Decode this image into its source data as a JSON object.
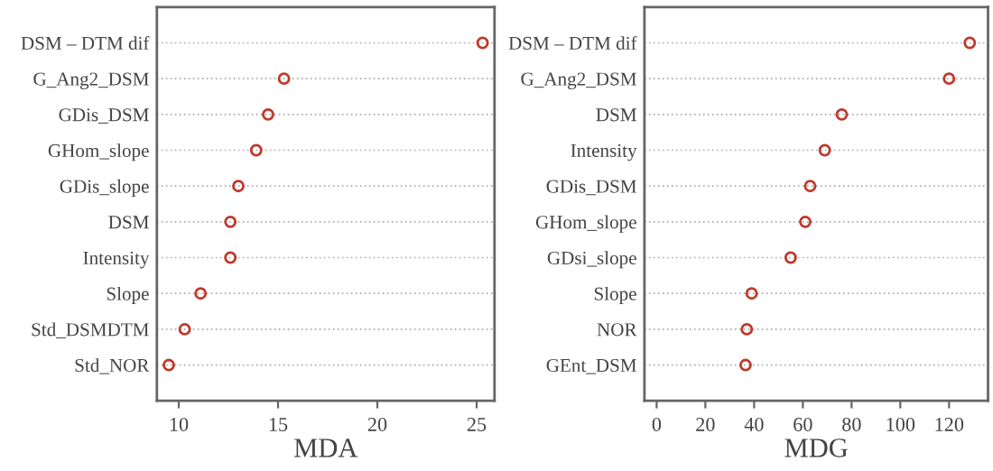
{
  "chart_data": [
    {
      "type": "scatter",
      "orientation": "horizontal",
      "xlabel": "MDA",
      "categories": [
        "DSM – DTM dif",
        "G_Ang2_DSM",
        "GDis_DSM",
        "GHom_slope",
        "GDis_slope",
        "DSM",
        "Intensity",
        "Slope",
        "Std_DSMDTM",
        "Std_NOR"
      ],
      "series": [
        {
          "color": "#c0392b",
          "values": [
            25.3,
            15.3,
            14.5,
            13.9,
            13.0,
            12.6,
            12.6,
            11.1,
            10.3,
            9.5
          ]
        }
      ],
      "xlim": [
        8.9,
        25.9
      ],
      "xticks": [
        10,
        15,
        20,
        25
      ],
      "grid": "y",
      "marker": "circle"
    },
    {
      "type": "scatter",
      "orientation": "horizontal",
      "xlabel": "MDG",
      "categories": [
        "DSM – DTM dif",
        "G_Ang2_DSM",
        "DSM",
        "Intensity",
        "GDis_DSM",
        "GHom_slope",
        "GDsi_slope",
        "Slope",
        "NOR",
        "GEnt_DSM"
      ],
      "series": [
        {
          "color": "#c0392b",
          "values": [
            128.5,
            120,
            76,
            69,
            63,
            61,
            55,
            39,
            37,
            36.5
          ]
        }
      ],
      "xlim": [
        -5,
        136
      ],
      "xticks": [
        0,
        20,
        40,
        60,
        80,
        100,
        120
      ],
      "grid": "y",
      "marker": "circle"
    }
  ]
}
